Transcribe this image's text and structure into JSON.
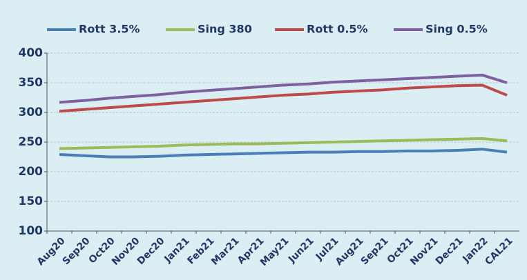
{
  "chart_data": {
    "type": "line",
    "categories": [
      "Aug20",
      "Sep20",
      "Oct20",
      "Nov20",
      "Dec20",
      "Jan21",
      "Feb21",
      "Mar21",
      "Apr21",
      "May21",
      "Jun21",
      "Jul21",
      "Aug21",
      "Sep21",
      "Oct21",
      "Nov21",
      "Dec21",
      "Jan22",
      "CAL21"
    ],
    "series": [
      {
        "name": "Rott 3.5%",
        "color": "#4a7ebb",
        "values": [
          229,
          227,
          225,
          225,
          226,
          228,
          229,
          230,
          231,
          232,
          233,
          233,
          234,
          234,
          235,
          235,
          236,
          238,
          233
        ]
      },
      {
        "name": "Sing 380",
        "color": "#9bbb59",
        "values": [
          239,
          240,
          241,
          242,
          243,
          245,
          246,
          247,
          247,
          248,
          249,
          250,
          251,
          252,
          253,
          254,
          255,
          256,
          252
        ]
      },
      {
        "name": "Rott 0.5%",
        "color": "#be4b48",
        "values": [
          302,
          305,
          308,
          311,
          314,
          317,
          320,
          323,
          326,
          329,
          331,
          334,
          336,
          338,
          341,
          343,
          345,
          346,
          329
        ]
      },
      {
        "name": "Sing 0.5%",
        "color": "#7d60a0",
        "values": [
          317,
          320,
          324,
          327,
          330,
          334,
          337,
          340,
          343,
          346,
          348,
          351,
          353,
          355,
          357,
          359,
          361,
          363,
          350
        ]
      }
    ],
    "ylim": [
      100,
      400
    ],
    "yticks": [
      100,
      150,
      200,
      250,
      300,
      350,
      400
    ],
    "grid": true
  }
}
